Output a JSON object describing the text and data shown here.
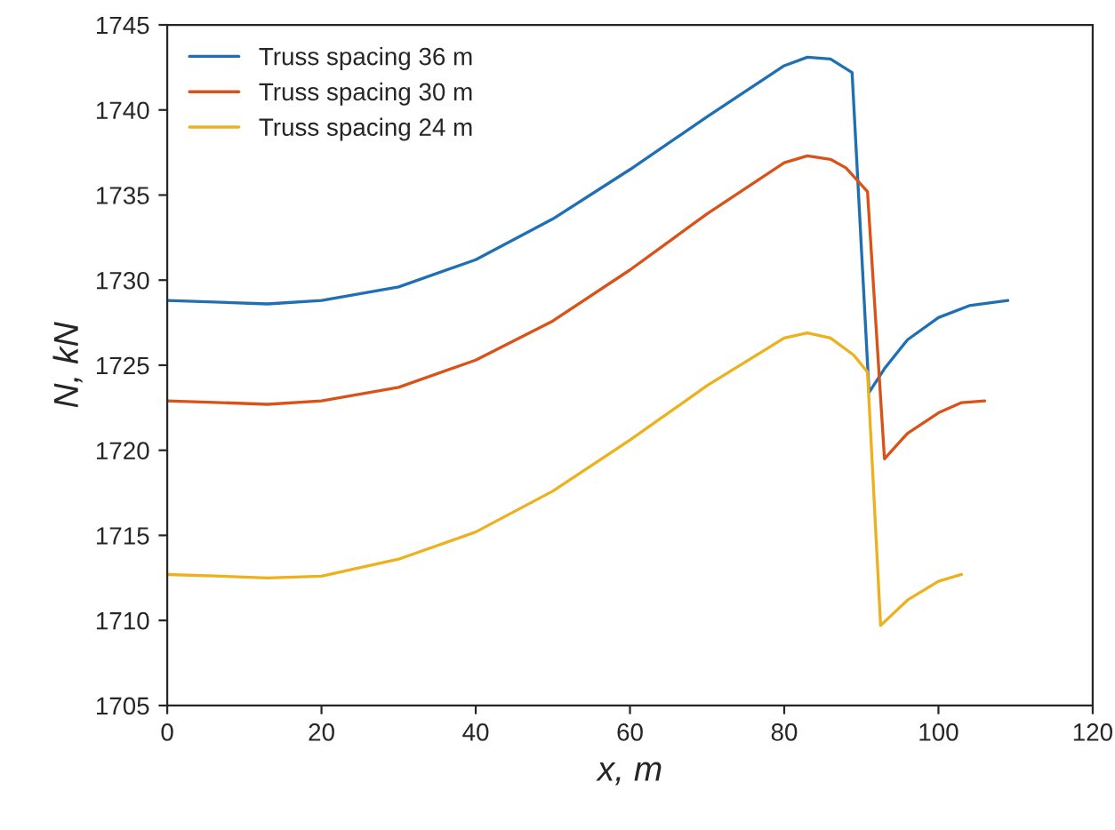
{
  "chart_data": {
    "type": "line",
    "xlabel": "x, m",
    "ylabel": "N, kN",
    "xlim": [
      0,
      120
    ],
    "xticks": [
      0,
      20,
      40,
      60,
      80,
      100,
      120
    ],
    "ylim": [
      1705,
      1745
    ],
    "yticks": [
      1705,
      1710,
      1715,
      1720,
      1725,
      1730,
      1735,
      1740,
      1745
    ],
    "grid": false,
    "legend": "top left",
    "marker": "none",
    "line_style": "solid",
    "series": [
      {
        "name": "Truss spacing 36 m",
        "color": "#1f6fb4",
        "x": [
          0,
          7,
          13,
          20,
          30,
          40,
          50,
          60,
          70,
          80,
          83,
          86,
          88.8,
          91,
          93,
          96,
          100,
          104,
          109
        ],
        "values": [
          1728.8,
          1728.7,
          1728.6,
          1728.8,
          1729.6,
          1731.2,
          1733.6,
          1736.5,
          1739.6,
          1742.6,
          1743.1,
          1743.0,
          1742.2,
          1723.4,
          1724.8,
          1726.5,
          1727.8,
          1728.5,
          1728.8
        ]
      },
      {
        "name": "Truss spacing 30 m",
        "color": "#d95319",
        "x": [
          0,
          7,
          13,
          20,
          30,
          40,
          50,
          60,
          70,
          80,
          83,
          86,
          88,
          90.8,
          93,
          96,
          100,
          103,
          106
        ],
        "values": [
          1722.9,
          1722.8,
          1722.7,
          1722.9,
          1723.7,
          1725.3,
          1727.6,
          1730.6,
          1733.9,
          1736.9,
          1737.3,
          1737.1,
          1736.6,
          1735.2,
          1719.5,
          1721.0,
          1722.2,
          1722.8,
          1722.9
        ]
      },
      {
        "name": "Truss spacing 24 m",
        "color": "#edb120",
        "x": [
          0,
          7,
          13,
          20,
          30,
          40,
          50,
          60,
          70,
          80,
          83,
          86,
          89,
          90.8,
          92.5,
          96,
          100,
          103
        ],
        "values": [
          1712.7,
          1712.6,
          1712.5,
          1712.6,
          1713.6,
          1715.2,
          1717.6,
          1720.6,
          1723.8,
          1726.6,
          1726.9,
          1726.6,
          1725.6,
          1724.6,
          1709.7,
          1711.2,
          1712.3,
          1712.7
        ]
      }
    ]
  }
}
